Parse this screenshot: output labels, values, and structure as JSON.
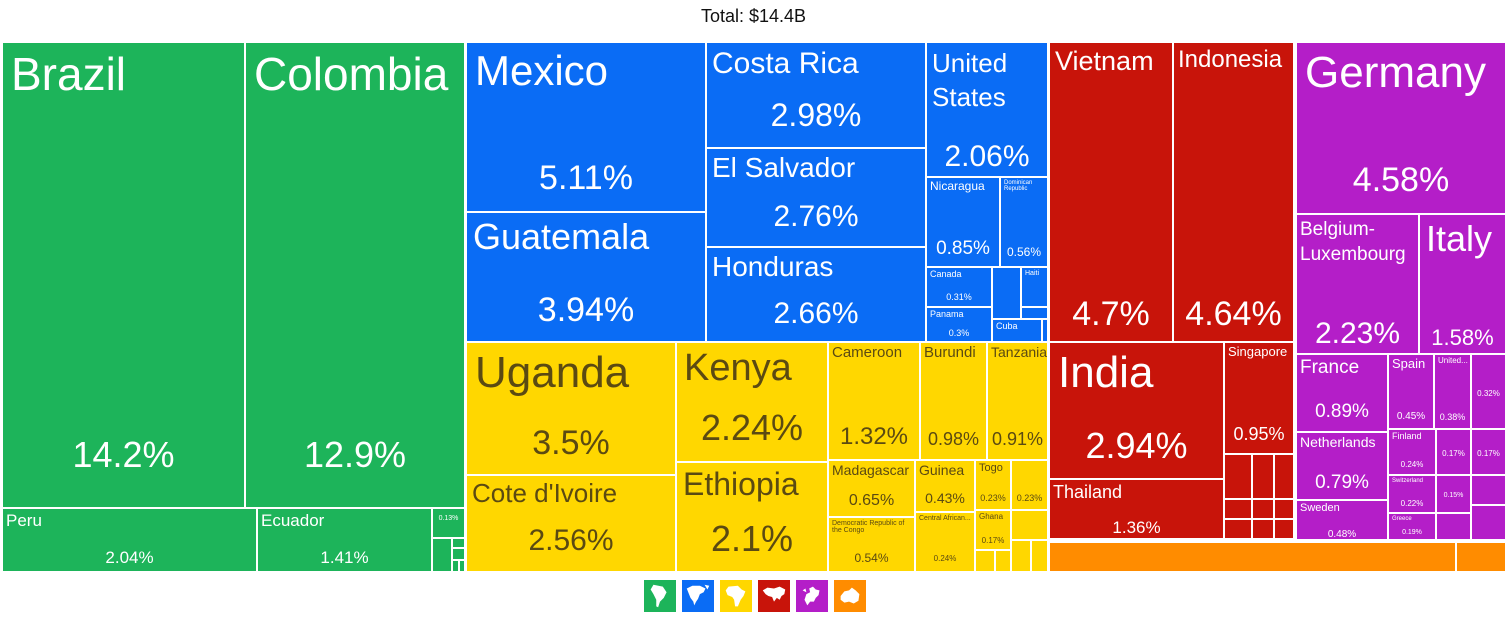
{
  "chart_data": {
    "type": "treemap",
    "title": "Total: $14.4B",
    "groups": [
      {
        "name": "South America",
        "color": "#1db45a",
        "icon": "south-america-icon",
        "items": [
          {
            "name": "Brazil",
            "share": "14.2%"
          },
          {
            "name": "Colombia",
            "share": "12.9%"
          },
          {
            "name": "Peru",
            "share": "2.04%"
          },
          {
            "name": "Ecuador",
            "share": "1.41%"
          },
          {
            "name": "",
            "share": "0.13%"
          }
        ]
      },
      {
        "name": "North America",
        "color": "#0a6cf5",
        "icon": "north-america-icon",
        "items": [
          {
            "name": "Mexico",
            "share": "5.11%"
          },
          {
            "name": "Guatemala",
            "share": "3.94%"
          },
          {
            "name": "Costa Rica",
            "share": "2.98%"
          },
          {
            "name": "El Salvador",
            "share": "2.76%"
          },
          {
            "name": "Honduras",
            "share": "2.66%"
          },
          {
            "name": "United States",
            "share": "2.06%"
          },
          {
            "name": "Nicaragua",
            "share": "0.85%"
          },
          {
            "name": "Dominican Republic",
            "share": "0.56%"
          },
          {
            "name": "Canada",
            "share": "0.31%"
          },
          {
            "name": "Panama",
            "share": "0.3%"
          },
          {
            "name": "Haiti",
            "share": ""
          },
          {
            "name": "Cuba",
            "share": ""
          }
        ]
      },
      {
        "name": "Africa",
        "color": "#ffd700",
        "icon": "africa-icon",
        "items": [
          {
            "name": "Uganda",
            "share": "3.5%"
          },
          {
            "name": "Cote d'Ivoire",
            "share": "2.56%"
          },
          {
            "name": "Kenya",
            "share": "2.24%"
          },
          {
            "name": "Ethiopia",
            "share": "2.1%"
          },
          {
            "name": "Cameroon",
            "share": "1.32%"
          },
          {
            "name": "Burundi",
            "share": "0.98%"
          },
          {
            "name": "Tanzania",
            "share": "0.91%"
          },
          {
            "name": "Madagascar",
            "share": "0.65%"
          },
          {
            "name": "Guinea",
            "share": "0.43%"
          },
          {
            "name": "Togo",
            "share": "0.23%"
          },
          {
            "name": "",
            "share": "0.23%"
          },
          {
            "name": "Democratic Republic of the Congo",
            "share": "0.54%"
          },
          {
            "name": "Central African...",
            "share": "0.24%"
          },
          {
            "name": "Ghana",
            "share": "0.17%"
          }
        ]
      },
      {
        "name": "Asia",
        "color": "#c8140a",
        "icon": "asia-icon",
        "items": [
          {
            "name": "Vietnam",
            "share": "4.7%"
          },
          {
            "name": "Indonesia",
            "share": "4.64%"
          },
          {
            "name": "India",
            "share": "2.94%"
          },
          {
            "name": "Thailand",
            "share": "1.36%"
          },
          {
            "name": "Singapore",
            "share": "0.95%"
          }
        ]
      },
      {
        "name": "Europe",
        "color": "#b41ec8",
        "icon": "europe-icon",
        "items": [
          {
            "name": "Germany",
            "share": "4.58%"
          },
          {
            "name": "Belgium-Luxembourg",
            "share": "2.23%"
          },
          {
            "name": "Italy",
            "share": "1.58%"
          },
          {
            "name": "France",
            "share": "0.89%"
          },
          {
            "name": "Netherlands",
            "share": "0.79%"
          },
          {
            "name": "Sweden",
            "share": "0.48%"
          },
          {
            "name": "Spain",
            "share": "0.45%"
          },
          {
            "name": "United...",
            "share": "0.38%"
          },
          {
            "name": "",
            "share": "0.32%"
          },
          {
            "name": "Finland",
            "share": "0.24%"
          },
          {
            "name": "",
            "share": "0.17%"
          },
          {
            "name": "",
            "share": "0.17%"
          },
          {
            "name": "Switzerland",
            "share": "0.22%"
          },
          {
            "name": "",
            "share": "0.15%"
          },
          {
            "name": "Greece",
            "share": "0.19%"
          }
        ]
      },
      {
        "name": "Oceania",
        "color": "#ff8c00",
        "icon": "oceania-icon",
        "items": []
      }
    ]
  }
}
